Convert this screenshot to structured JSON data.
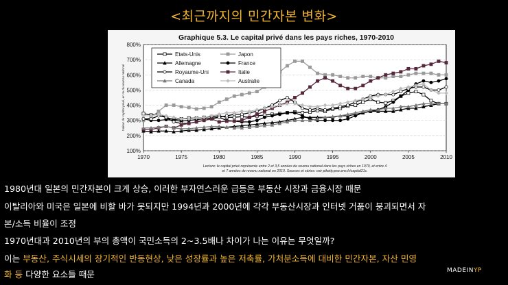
{
  "slide_title": "<최근까지의 민간자본 변화>",
  "chart_data": {
    "type": "line",
    "title": "Graphique 5.3. Le capital privé dans les pays riches, 1970-2010",
    "ylabel": "Valeur du capital privé, en % du revenu national",
    "xlabel": "",
    "x_ticks": [
      "1970",
      "1975",
      "1980",
      "1985",
      "1990",
      "1995",
      "2000",
      "2005",
      "2010"
    ],
    "y_ticks": [
      "100%",
      "200%",
      "300%",
      "400%",
      "500%",
      "600%",
      "700%",
      "800%"
    ],
    "xlim": [
      1970,
      2010
    ],
    "ylim": [
      100,
      800
    ],
    "grid": true,
    "legend_position": "top-left",
    "note_line1": "Lecture: le capital privé représente entre 2 et 3,5 années de revenu national dans les pays riches en 1970, et entre 4",
    "note_line2": "et 7 années de revenu national en 2010. Sources et séries: voir piketty.pse.ens.fr/capital21c.",
    "x": [
      1970,
      1971,
      1972,
      1973,
      1974,
      1975,
      1976,
      1977,
      1978,
      1979,
      1980,
      1981,
      1982,
      1983,
      1984,
      1985,
      1986,
      1987,
      1988,
      1989,
      1990,
      1991,
      1992,
      1993,
      1994,
      1995,
      1996,
      1997,
      1998,
      1999,
      2000,
      2001,
      2002,
      2003,
      2004,
      2005,
      2006,
      2007,
      2008,
      2009,
      2010
    ],
    "series": [
      {
        "name": "Etats-Unis",
        "color": "#000000",
        "marker": "square-open",
        "dash": "",
        "values": [
          345,
          335,
          345,
          320,
          305,
          310,
          315,
          315,
          320,
          325,
          330,
          320,
          320,
          325,
          320,
          330,
          335,
          340,
          345,
          350,
          355,
          350,
          355,
          365,
          360,
          375,
          380,
          395,
          400,
          420,
          440,
          420,
          415,
          430,
          460,
          480,
          490,
          470,
          430,
          410,
          410
        ]
      },
      {
        "name": "Japon",
        "color": "#9a9a9a",
        "marker": "square",
        "dash": "",
        "values": [
          300,
          320,
          360,
          400,
          400,
          390,
          385,
          375,
          380,
          390,
          420,
          440,
          460,
          470,
          480,
          490,
          520,
          570,
          620,
          660,
          690,
          690,
          650,
          610,
          600,
          600,
          590,
          580,
          580,
          590,
          590,
          580,
          580,
          590,
          590,
          600,
          610,
          610,
          610,
          600,
          600
        ]
      },
      {
        "name": "Allemagne",
        "color": "#000000",
        "marker": "triangle",
        "dash": "",
        "values": [
          230,
          225,
          230,
          230,
          225,
          230,
          235,
          235,
          240,
          245,
          250,
          255,
          260,
          265,
          270,
          275,
          280,
          285,
          290,
          300,
          310,
          320,
          320,
          320,
          320,
          320,
          330,
          330,
          340,
          350,
          360,
          360,
          360,
          360,
          370,
          380,
          380,
          390,
          400,
          410,
          410
        ]
      },
      {
        "name": "France",
        "color": "#000000",
        "marker": "circle",
        "dash": "",
        "values": [
          310,
          300,
          300,
          305,
          300,
          295,
          300,
          305,
          310,
          315,
          320,
          300,
          295,
          290,
          290,
          300,
          320,
          330,
          340,
          350,
          350,
          330,
          310,
          300,
          300,
          300,
          300,
          310,
          330,
          350,
          360,
          370,
          390,
          420,
          460,
          500,
          540,
          560,
          550,
          560,
          575
        ]
      },
      {
        "name": "Royaume-Uni",
        "color": "#000000",
        "marker": "circle-open",
        "dash": "",
        "values": [
          310,
          310,
          330,
          320,
          290,
          280,
          280,
          290,
          300,
          310,
          320,
          330,
          340,
          340,
          350,
          360,
          380,
          400,
          430,
          450,
          420,
          380,
          370,
          380,
          370,
          380,
          390,
          400,
          420,
          440,
          460,
          470,
          470,
          470,
          490,
          510,
          520,
          520,
          500,
          500,
          520
        ]
      },
      {
        "name": "Italie",
        "color": "#55283c",
        "marker": "square",
        "dash": "",
        "values": [
          240,
          240,
          250,
          260,
          250,
          270,
          280,
          290,
          300,
          310,
          290,
          295,
          295,
          300,
          320,
          340,
          360,
          380,
          400,
          420,
          450,
          480,
          520,
          560,
          580,
          560,
          530,
          510,
          510,
          530,
          560,
          580,
          600,
          610,
          620,
          640,
          640,
          660,
          670,
          690,
          680
        ]
      },
      {
        "name": "Canada",
        "color": "#7a7a7a",
        "marker": "triangle",
        "dash": "",
        "values": [
          250,
          250,
          255,
          260,
          250,
          245,
          245,
          250,
          255,
          260,
          260,
          255,
          250,
          250,
          255,
          260,
          265,
          270,
          280,
          290,
          300,
          300,
          300,
          310,
          320,
          325,
          330,
          340,
          350,
          360,
          370,
          370,
          380,
          380,
          390,
          390,
          400,
          410,
          410,
          410,
          410
        ]
      },
      {
        "name": "Australie",
        "color": "#bdbdbd",
        "marker": "diamond",
        "dash": "",
        "values": [
          330,
          330,
          340,
          330,
          320,
          310,
          310,
          315,
          320,
          330,
          340,
          350,
          350,
          360,
          360,
          370,
          380,
          390,
          400,
          410,
          410,
          400,
          390,
          390,
          400,
          400,
          410,
          420,
          430,
          440,
          450,
          460,
          470,
          490,
          510,
          520,
          530,
          540,
          500,
          480,
          480
        ]
      }
    ]
  },
  "body": {
    "line1": "1980년대 일본의 민간자본이 크게 상승, 이러한 부자연스러운 급등은 부동산 시장과 금융시장 때문",
    "line2": "이탈리아와 미국은 일본에 비할 바가 못되지만 1994년과 2000년에 각각 부동산시장과 인터넷 거품이 붕괴되면서 자",
    "line3": "본/소득 비율이 조정",
    "line4": "1970년대과 2010년의 부의 총액이 국민소득의 2~3.5배나 차이가 나는 이유는 무엇일까?",
    "line5_prefix": "이는 ",
    "line5_highlight": "부동산, 주식시세의 장기적인 반동현상, 낮은 성장률과 높은 저축률,  가처분소득에 대비한 민간자본, 자산 민영",
    "line6_highlight": "화 등",
    "line6_suffix": " 다양한 요소들 때문"
  },
  "brand": {
    "made": "MADEIN",
    "yp": "YP"
  },
  "colors": {
    "accent": "#f2b632",
    "background": "#000000",
    "text": "#ffffff"
  }
}
